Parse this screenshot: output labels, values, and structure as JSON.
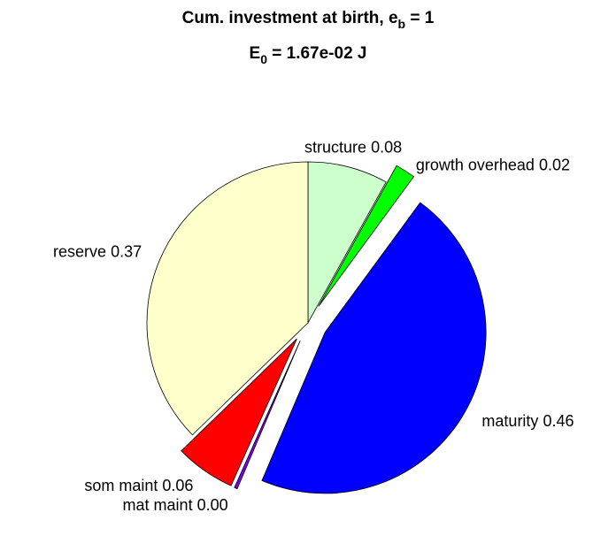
{
  "chart_data": {
    "type": "pie",
    "title": [
      [
        {
          "text": "Cum. investment at birth, e"
        },
        {
          "sub": "b"
        },
        {
          "text": " = 1"
        }
      ],
      [
        {
          "text": "E"
        },
        {
          "sub": "0"
        },
        {
          "text": " = 1.67e-02 J"
        }
      ]
    ],
    "categories": [
      "structure",
      "growth overhead",
      "maturity",
      "mat maint",
      "som maint",
      "reserve"
    ],
    "values": [
      0.08,
      0.02,
      0.46,
      0.003,
      0.06,
      0.37
    ],
    "value_labels": [
      "0.08",
      "0.02",
      "0.46",
      "0.00",
      "0.06",
      "0.37"
    ],
    "colors": [
      "#ccffcc",
      "#00ff00",
      "#0000ff",
      "#8000ff",
      "#ff0000",
      "#ffffcc"
    ],
    "explode": [
      false,
      true,
      true,
      true,
      true,
      false
    ]
  }
}
